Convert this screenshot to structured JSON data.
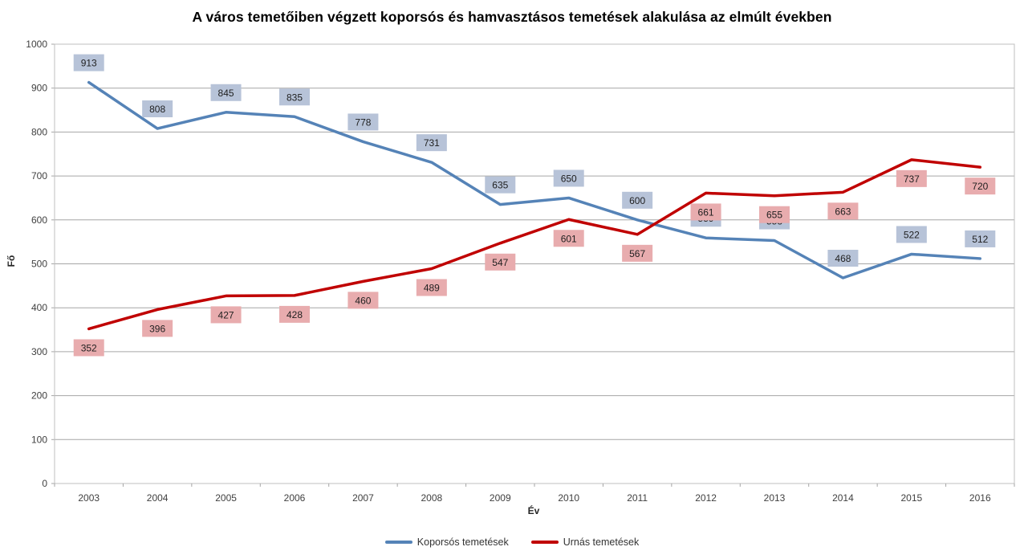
{
  "chart_data": {
    "type": "line",
    "title": "A város temetőiben végzett koporsós és hamvasztásos temetések alakulása az elmúlt években",
    "xlabel": "Év",
    "ylabel": "Fő",
    "ylim": [
      0,
      1000
    ],
    "ytick_step": 100,
    "yticks": [
      0,
      100,
      200,
      300,
      400,
      500,
      600,
      700,
      800,
      900,
      1000
    ],
    "grid": true,
    "legend_position": "bottom",
    "categories": [
      "2003",
      "2004",
      "2005",
      "2006",
      "2007",
      "2008",
      "2009",
      "2010",
      "2011",
      "2012",
      "2013",
      "2014",
      "2015",
      "2016"
    ],
    "series": [
      {
        "name": "Koporsós temetések",
        "color": "#5583B7",
        "label_bg": "#B7C3D8",
        "label_side": "above",
        "values": [
          913,
          808,
          845,
          835,
          778,
          731,
          635,
          650,
          600,
          559,
          553,
          468,
          522,
          512
        ]
      },
      {
        "name": "Urnás temetések",
        "color": "#C00000",
        "label_bg": "#E8ACAE",
        "label_side": "below",
        "values": [
          352,
          396,
          427,
          428,
          460,
          489,
          547,
          601,
          567,
          661,
          655,
          663,
          737,
          720
        ]
      }
    ],
    "colors": {
      "gridline": "#A6A6A6",
      "plot_border": "#BFBFBF",
      "tick_text": "#404040",
      "label_text": "#1F1F1F",
      "title_text": "#000000"
    }
  }
}
